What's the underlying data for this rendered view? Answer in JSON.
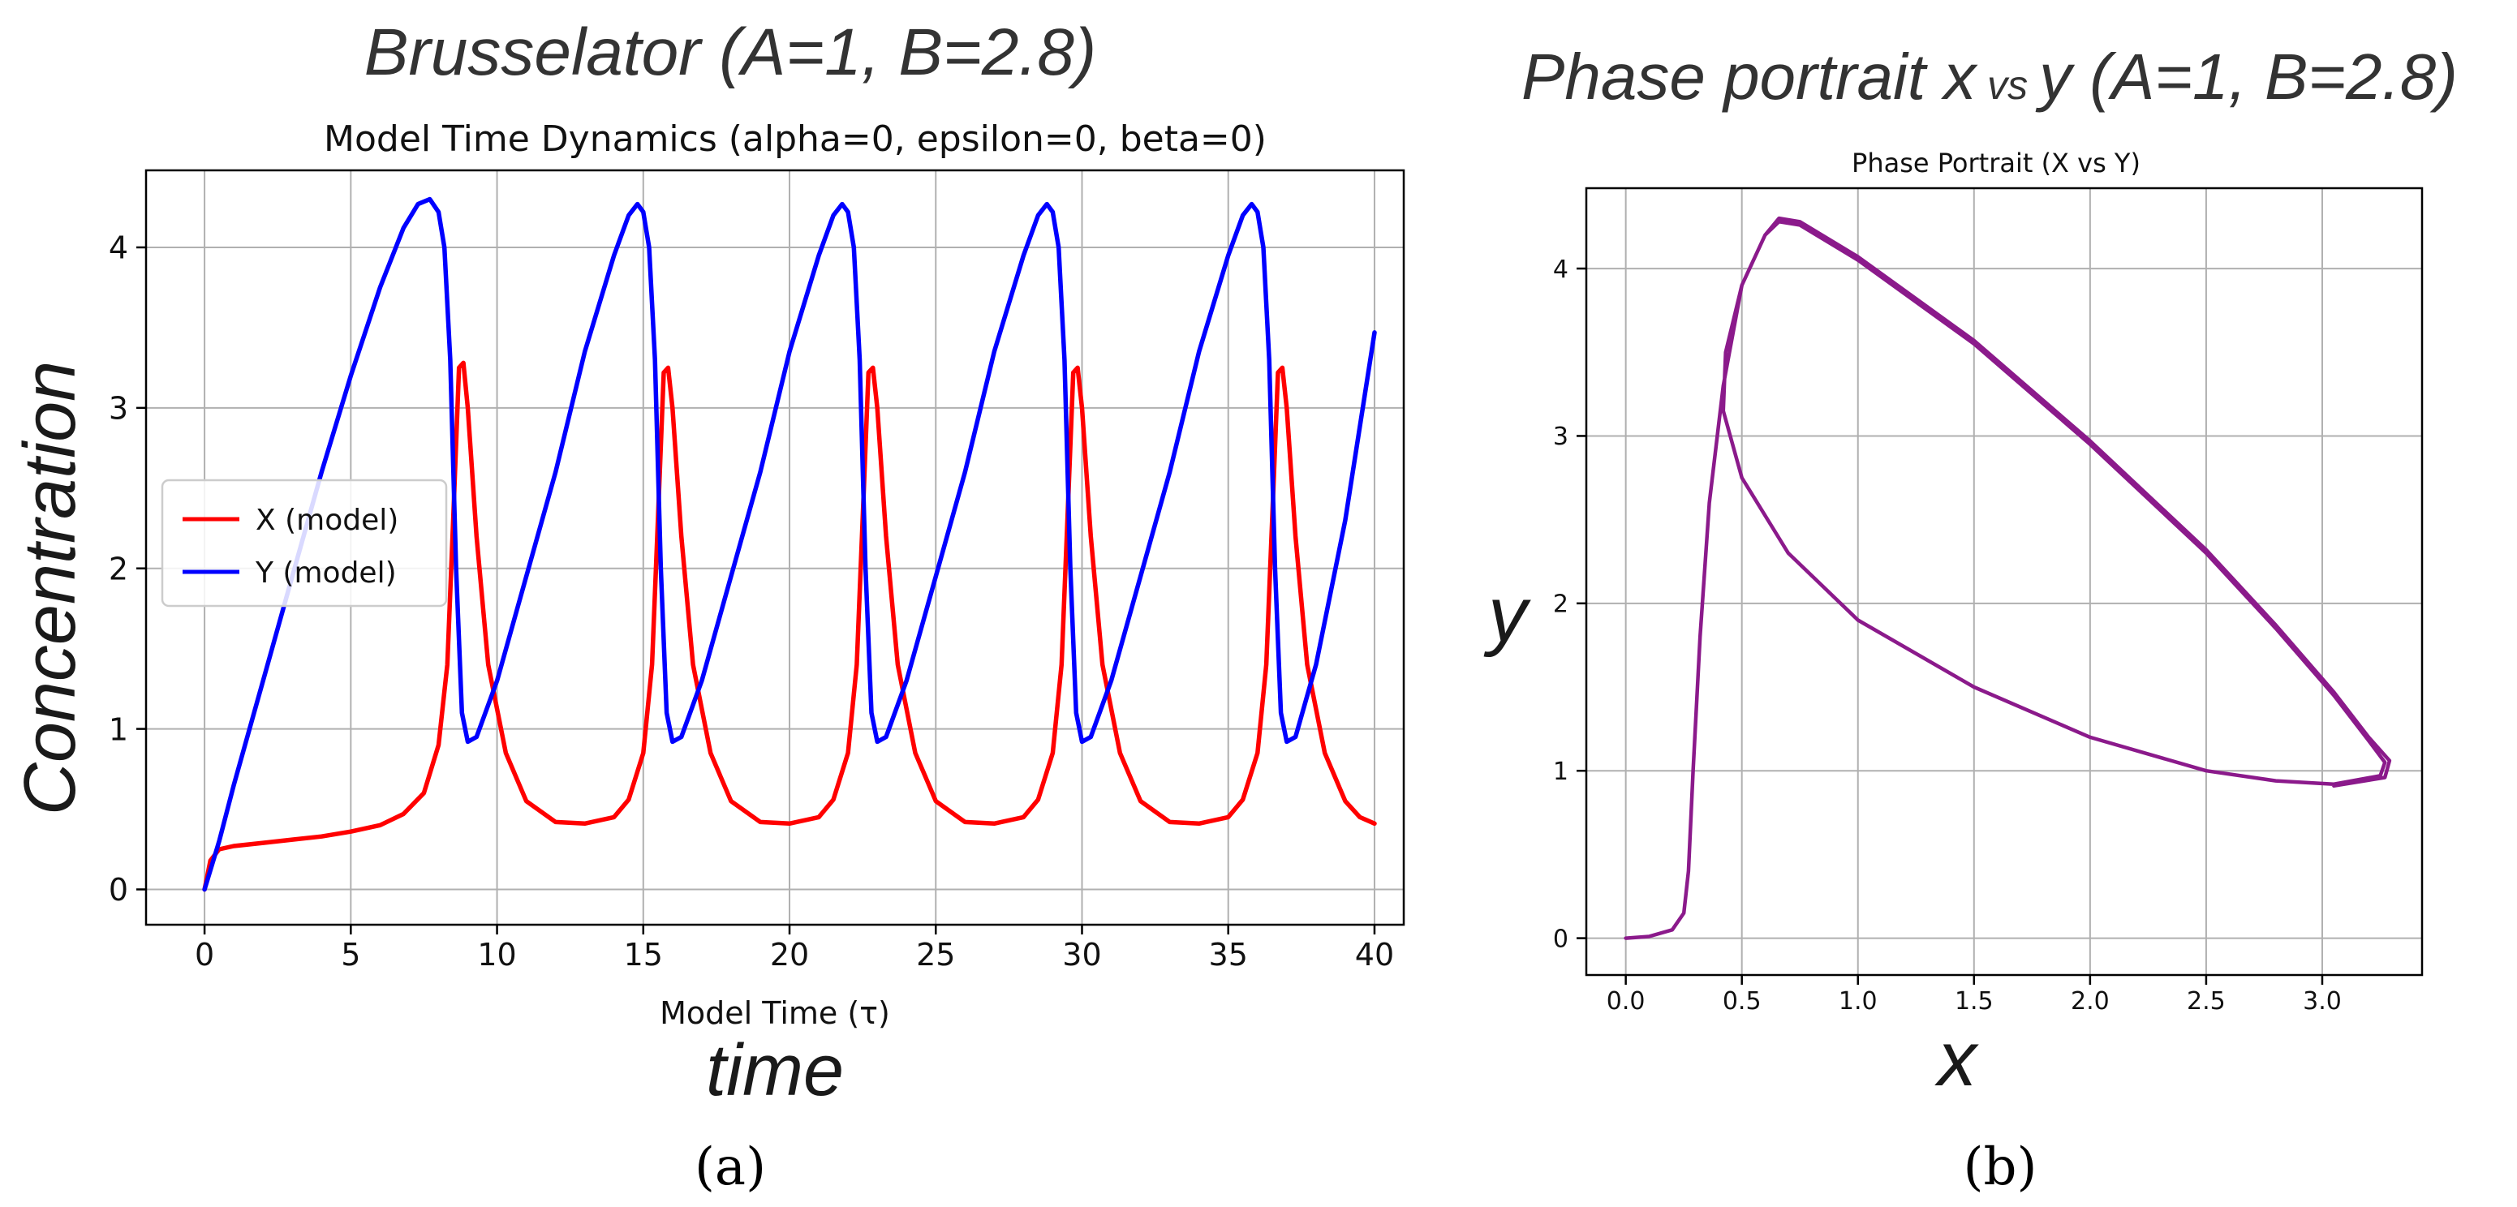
{
  "chart_data": [
    {
      "type": "line",
      "title": "Model Time Dynamics (alpha=0, epsilon=0, beta=0)",
      "overlay_title": "Brusselator (A=1, B=2.8)",
      "xlabel": "Model Time (τ)",
      "ylabel": "Concentration",
      "outer_xlabel": "time",
      "panel_label": "(a)",
      "xlim": [
        -2,
        41
      ],
      "ylim": [
        -0.22,
        4.48
      ],
      "x_ticks": [
        "0",
        "5",
        "10",
        "15",
        "20",
        "25",
        "30",
        "35",
        "40"
      ],
      "y_ticks": [
        "0",
        "1",
        "2",
        "3",
        "4"
      ],
      "grid": true,
      "legend_position": "center-left",
      "series": [
        {
          "name": "X (model)",
          "color": "#ff0000",
          "points": [
            [
              0,
              0
            ],
            [
              0.2,
              0.18
            ],
            [
              0.5,
              0.25
            ],
            [
              1,
              0.27
            ],
            [
              2,
              0.29
            ],
            [
              3,
              0.31
            ],
            [
              4,
              0.33
            ],
            [
              5,
              0.36
            ],
            [
              6,
              0.4
            ],
            [
              6.8,
              0.47
            ],
            [
              7.5,
              0.6
            ],
            [
              8,
              0.9
            ],
            [
              8.3,
              1.4
            ],
            [
              8.5,
              2.3
            ],
            [
              8.7,
              3.25
            ],
            [
              8.85,
              3.28
            ],
            [
              9.0,
              3.0
            ],
            [
              9.3,
              2.2
            ],
            [
              9.7,
              1.4
            ],
            [
              10.3,
              0.85
            ],
            [
              11,
              0.55
            ],
            [
              12,
              0.42
            ],
            [
              13,
              0.41
            ],
            [
              14,
              0.45
            ],
            [
              14.5,
              0.56
            ],
            [
              15,
              0.85
            ],
            [
              15.3,
              1.4
            ],
            [
              15.5,
              2.3
            ],
            [
              15.7,
              3.22
            ],
            [
              15.85,
              3.25
            ],
            [
              16.0,
              3.0
            ],
            [
              16.3,
              2.2
            ],
            [
              16.7,
              1.4
            ],
            [
              17.3,
              0.85
            ],
            [
              18,
              0.55
            ],
            [
              19,
              0.42
            ],
            [
              20,
              0.41
            ],
            [
              21,
              0.45
            ],
            [
              21.5,
              0.56
            ],
            [
              22,
              0.85
            ],
            [
              22.3,
              1.4
            ],
            [
              22.5,
              2.3
            ],
            [
              22.7,
              3.22
            ],
            [
              22.85,
              3.25
            ],
            [
              23.0,
              3.0
            ],
            [
              23.3,
              2.2
            ],
            [
              23.7,
              1.4
            ],
            [
              24.3,
              0.85
            ],
            [
              25,
              0.55
            ],
            [
              26,
              0.42
            ],
            [
              27,
              0.41
            ],
            [
              28,
              0.45
            ],
            [
              28.5,
              0.56
            ],
            [
              29,
              0.85
            ],
            [
              29.3,
              1.4
            ],
            [
              29.5,
              2.3
            ],
            [
              29.7,
              3.22
            ],
            [
              29.85,
              3.25
            ],
            [
              30.0,
              3.0
            ],
            [
              30.3,
              2.2
            ],
            [
              30.7,
              1.4
            ],
            [
              31.3,
              0.85
            ],
            [
              32,
              0.55
            ],
            [
              33,
              0.42
            ],
            [
              34,
              0.41
            ],
            [
              35,
              0.45
            ],
            [
              35.5,
              0.56
            ],
            [
              36,
              0.85
            ],
            [
              36.3,
              1.4
            ],
            [
              36.5,
              2.3
            ],
            [
              36.7,
              3.22
            ],
            [
              36.85,
              3.25
            ],
            [
              37.0,
              3.0
            ],
            [
              37.3,
              2.2
            ],
            [
              37.7,
              1.4
            ],
            [
              38.3,
              0.85
            ],
            [
              39,
              0.55
            ],
            [
              39.5,
              0.45
            ],
            [
              40,
              0.41
            ]
          ]
        },
        {
          "name": "Y (model)",
          "color": "#0000ff",
          "points": [
            [
              0,
              0
            ],
            [
              0.5,
              0.3
            ],
            [
              1,
              0.65
            ],
            [
              2,
              1.3
            ],
            [
              3,
              1.95
            ],
            [
              4,
              2.6
            ],
            [
              5,
              3.2
            ],
            [
              6,
              3.75
            ],
            [
              6.8,
              4.12
            ],
            [
              7.3,
              4.27
            ],
            [
              7.7,
              4.3
            ],
            [
              8.0,
              4.22
            ],
            [
              8.2,
              4.0
            ],
            [
              8.4,
              3.3
            ],
            [
              8.6,
              2.0
            ],
            [
              8.8,
              1.1
            ],
            [
              9.0,
              0.92
            ],
            [
              9.3,
              0.95
            ],
            [
              10,
              1.3
            ],
            [
              11,
              1.95
            ],
            [
              12,
              2.6
            ],
            [
              13,
              3.35
            ],
            [
              14,
              3.95
            ],
            [
              14.5,
              4.2
            ],
            [
              14.8,
              4.27
            ],
            [
              15.0,
              4.22
            ],
            [
              15.2,
              4.0
            ],
            [
              15.4,
              3.3
            ],
            [
              15.6,
              2.0
            ],
            [
              15.8,
              1.1
            ],
            [
              16.0,
              0.92
            ],
            [
              16.3,
              0.95
            ],
            [
              17,
              1.3
            ],
            [
              18,
              1.95
            ],
            [
              19,
              2.6
            ],
            [
              20,
              3.35
            ],
            [
              21,
              3.95
            ],
            [
              21.5,
              4.2
            ],
            [
              21.8,
              4.27
            ],
            [
              22.0,
              4.22
            ],
            [
              22.2,
              4.0
            ],
            [
              22.4,
              3.3
            ],
            [
              22.6,
              2.0
            ],
            [
              22.8,
              1.1
            ],
            [
              23.0,
              0.92
            ],
            [
              23.3,
              0.95
            ],
            [
              24,
              1.3
            ],
            [
              25,
              1.95
            ],
            [
              26,
              2.6
            ],
            [
              27,
              3.35
            ],
            [
              28,
              3.95
            ],
            [
              28.5,
              4.2
            ],
            [
              28.8,
              4.27
            ],
            [
              29.0,
              4.22
            ],
            [
              29.2,
              4.0
            ],
            [
              29.4,
              3.3
            ],
            [
              29.6,
              2.0
            ],
            [
              29.8,
              1.1
            ],
            [
              30.0,
              0.92
            ],
            [
              30.3,
              0.95
            ],
            [
              31,
              1.3
            ],
            [
              32,
              1.95
            ],
            [
              33,
              2.6
            ],
            [
              34,
              3.35
            ],
            [
              35,
              3.95
            ],
            [
              35.5,
              4.2
            ],
            [
              35.8,
              4.27
            ],
            [
              36.0,
              4.22
            ],
            [
              36.2,
              4.0
            ],
            [
              36.4,
              3.3
            ],
            [
              36.6,
              2.0
            ],
            [
              36.8,
              1.1
            ],
            [
              37.0,
              0.92
            ],
            [
              37.3,
              0.95
            ],
            [
              38,
              1.4
            ],
            [
              39,
              2.3
            ],
            [
              40,
              3.47
            ]
          ]
        }
      ]
    },
    {
      "type": "line",
      "title": "Phase Portrait (X vs Y)",
      "overlay_title_main": "Phase portrait ",
      "overlay_title_x": "x",
      "overlay_title_vs": " vs ",
      "overlay_title_y": "y",
      "overlay_title_params": " (A=1, B=2.8)",
      "outer_xlabel": "x",
      "outer_ylabel": "y",
      "panel_label": "(b)",
      "xlim": [
        -0.17,
        3.43
      ],
      "ylim": [
        -0.22,
        4.48
      ],
      "x_ticks": [
        "0.0",
        "0.5",
        "1.0",
        "1.5",
        "2.0",
        "2.5",
        "3.0"
      ],
      "y_ticks": [
        "0",
        "1",
        "2",
        "3",
        "4"
      ],
      "grid": true,
      "series": [
        {
          "color": "#8b1a8b",
          "points": [
            [
              0,
              0
            ],
            [
              0.1,
              0.01
            ],
            [
              0.2,
              0.05
            ],
            [
              0.25,
              0.15
            ],
            [
              0.27,
              0.4
            ],
            [
              0.29,
              1.0
            ],
            [
              0.32,
              1.8
            ],
            [
              0.36,
              2.6
            ],
            [
              0.42,
              3.3
            ],
            [
              0.5,
              3.9
            ],
            [
              0.6,
              4.2
            ],
            [
              0.66,
              4.28
            ],
            [
              0.75,
              4.26
            ],
            [
              1.0,
              4.05
            ],
            [
              1.5,
              3.55
            ],
            [
              2.0,
              2.95
            ],
            [
              2.5,
              2.3
            ],
            [
              2.8,
              1.85
            ],
            [
              3.05,
              1.45
            ],
            [
              3.2,
              1.18
            ],
            [
              3.27,
              1.05
            ],
            [
              3.25,
              0.97
            ],
            [
              3.05,
              0.92
            ],
            [
              2.8,
              0.94
            ],
            [
              2.5,
              1.0
            ],
            [
              2.0,
              1.2
            ],
            [
              1.5,
              1.5
            ],
            [
              1.0,
              1.9
            ],
            [
              0.7,
              2.3
            ],
            [
              0.5,
              2.75
            ],
            [
              0.42,
              3.15
            ],
            [
              0.43,
              3.5
            ],
            [
              0.5,
              3.9
            ],
            [
              0.6,
              4.2
            ],
            [
              0.66,
              4.3
            ],
            [
              0.75,
              4.28
            ],
            [
              1.0,
              4.07
            ],
            [
              1.5,
              3.57
            ],
            [
              2.0,
              2.97
            ],
            [
              2.5,
              2.32
            ],
            [
              2.8,
              1.87
            ],
            [
              3.05,
              1.47
            ],
            [
              3.2,
              1.2
            ],
            [
              3.29,
              1.06
            ],
            [
              3.27,
              0.96
            ],
            [
              3.05,
              0.91
            ]
          ]
        }
      ]
    }
  ]
}
